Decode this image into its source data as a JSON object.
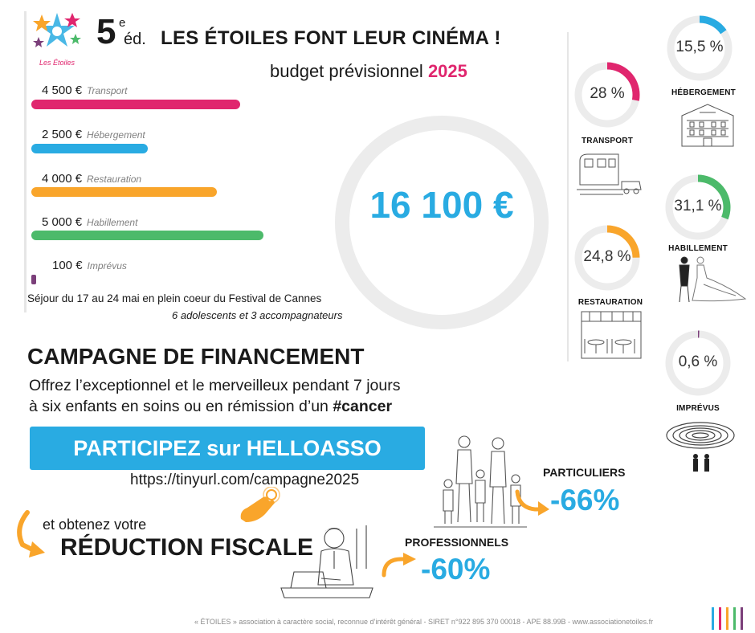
{
  "colors": {
    "pink": "#e0266e",
    "blue": "#29abe2",
    "orange": "#f9a52b",
    "green": "#4cba6a",
    "purple": "#7b3f7a",
    "grey": "#eeeeee"
  },
  "logo": {
    "caption": "Les Étoiles"
  },
  "header": {
    "edition_number": "5",
    "edition_sup": "e",
    "edition_suffix": "éd.",
    "title": "LES ÉTOILES FONT LEUR CINÉMA !",
    "subtitle": "budget prévisionnel",
    "year": "2025"
  },
  "budget": {
    "items": [
      {
        "amount": "4 500 €",
        "category": "Transport",
        "value": 4500,
        "color": "#e0266e"
      },
      {
        "amount": "2 500 €",
        "category": "Hébergement",
        "value": 2500,
        "color": "#29abe2"
      },
      {
        "amount": "4 000 €",
        "category": "Restauration",
        "value": 4000,
        "color": "#f9a52b"
      },
      {
        "amount": "5 000 €",
        "category": "Habillement",
        "value": 5000,
        "color": "#4cba6a"
      },
      {
        "amount": "100 €",
        "category": "Imprévus",
        "value": 100,
        "color": "#7b3f7a"
      }
    ],
    "total": "16 100 €",
    "stay": "Séjour du 17 au 24 mai en plein coeur du Festival de Cannes",
    "participants": "6 adolescents et 3 accompagnateurs"
  },
  "donuts": [
    {
      "pct": "28 %",
      "fraction": 0.28,
      "label": "TRANSPORT",
      "color": "#e0266e"
    },
    {
      "pct": "15,5 %",
      "fraction": 0.155,
      "label": "HÉBERGEMENT",
      "color": "#29abe2"
    },
    {
      "pct": "24,8 %",
      "fraction": 0.248,
      "label": "RESTAURATION",
      "color": "#f9a52b"
    },
    {
      "pct": "31,1 %",
      "fraction": 0.311,
      "label": "HABILLEMENT",
      "color": "#4cba6a"
    },
    {
      "pct": "0,6 %",
      "fraction": 0.006,
      "label": "IMPRÉVUS",
      "color": "#7b3f7a"
    }
  ],
  "campaign": {
    "title": "CAMPAGNE DE FINANCEMENT",
    "line1": "Offrez l’exceptionnel et le merveilleux pendant 7 jours",
    "line2": "à six enfants en soins ou en rémission d’un ",
    "hashtag": "#cancer",
    "cta": "PARTICIPEZ sur HELLOASSO",
    "url": "https://tinyurl.com/campagne2025",
    "obtain": "et obtenez votre",
    "reduction": "RÉDUCTION FISCALE",
    "particuliers_label": "PARTICULIERS",
    "particuliers_value": "-66%",
    "pro_label": "PROFESSIONNELS",
    "pro_value": "-60%"
  },
  "footer": "« ÉTOILES » association à caractère social, reconnue d’intérêt général - SIRET n°922 895 370 00018 - APE 88.99B - www.associationetoiles.fr"
}
